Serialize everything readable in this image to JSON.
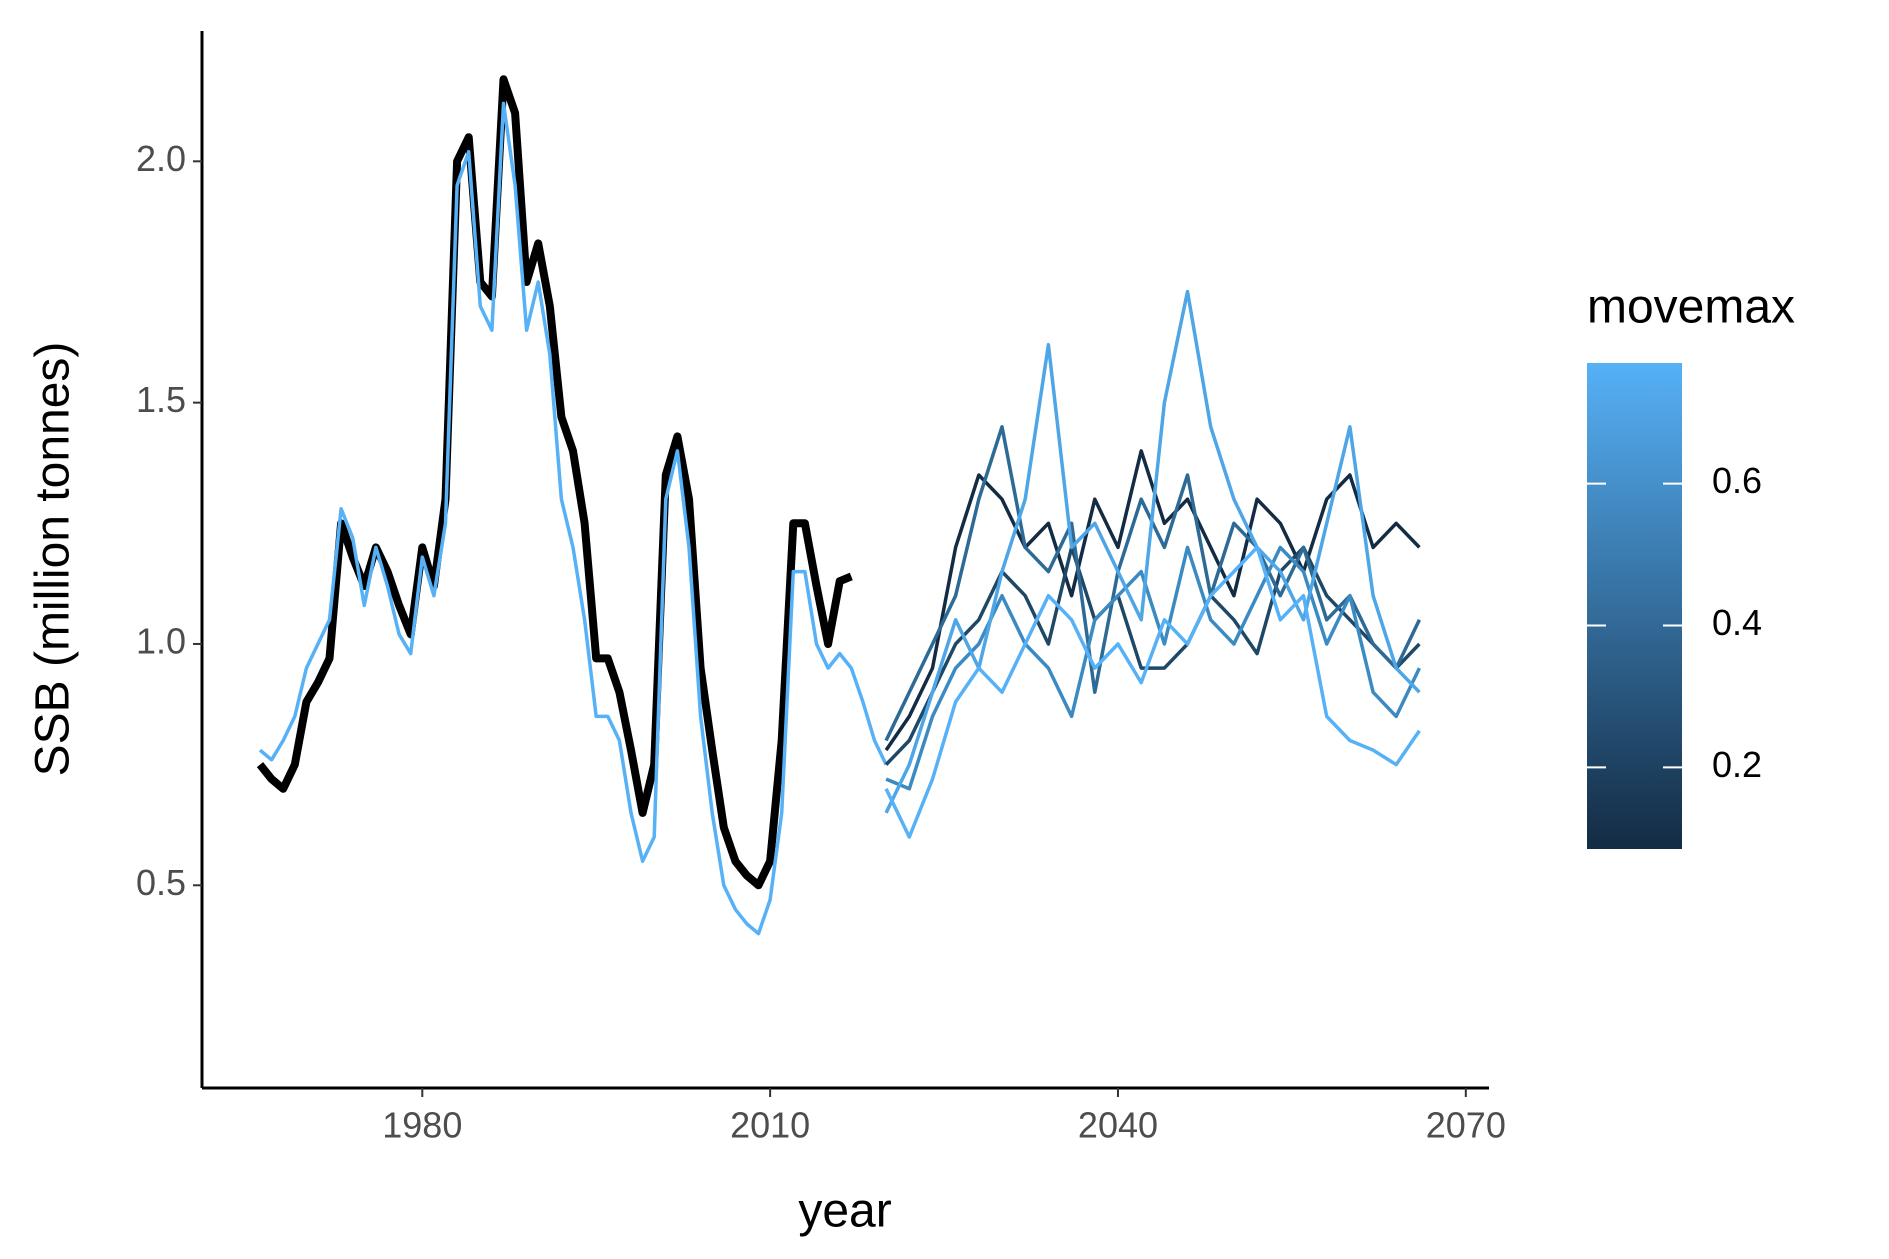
{
  "chart_data": {
    "type": "line",
    "xlabel": "year",
    "ylabel": "SSB (million  tonnes)",
    "xlim": [
      1961,
      2072
    ],
    "xticks": [
      1980,
      2010,
      2040,
      2070
    ],
    "ylim": [
      0.08,
      2.27
    ],
    "yticks": [
      {
        "value": 0.5,
        "label": "0.5"
      },
      {
        "value": 1.0,
        "label": "1.0"
      },
      {
        "value": 1.5,
        "label": "1.5"
      },
      {
        "value": 2.0,
        "label": "2.0"
      }
    ],
    "colorbar": {
      "title": "movemax",
      "lim": [
        0.085,
        0.77
      ],
      "ticks": [
        0.2,
        0.4,
        0.6
      ],
      "low_color": "#132b43",
      "high_color": "#56b1f7"
    },
    "series": [
      {
        "color": "#000000",
        "width": "thick",
        "x": [
          1966,
          1967,
          1968,
          1969,
          1970,
          1971,
          1972,
          1973,
          1974,
          1975,
          1976,
          1977,
          1978,
          1979,
          1980,
          1981,
          1982,
          1983,
          1984,
          1985,
          1986,
          1987,
          1988,
          1989,
          1990,
          1991,
          1992,
          1993,
          1994,
          1995,
          1996,
          1997,
          1998,
          1999,
          2000,
          2001,
          2002,
          2003,
          2004,
          2005,
          2006,
          2007,
          2008,
          2009,
          2010,
          2011,
          2012,
          2013,
          2014,
          2015,
          2016,
          2017
        ],
        "values": [
          0.75,
          0.72,
          0.7,
          0.75,
          0.88,
          0.92,
          0.97,
          1.25,
          1.18,
          1.12,
          1.2,
          1.15,
          1.08,
          1.02,
          1.2,
          1.12,
          1.3,
          2.0,
          2.05,
          1.75,
          1.72,
          2.17,
          2.1,
          1.75,
          1.83,
          1.7,
          1.47,
          1.4,
          1.25,
          0.97,
          0.97,
          0.9,
          0.78,
          0.65,
          0.75,
          1.35,
          1.43,
          1.3,
          0.95,
          0.78,
          0.62,
          0.55,
          0.52,
          0.5,
          0.55,
          0.8,
          1.25,
          1.25,
          1.12,
          1.0,
          1.13,
          1.14
        ]
      },
      {
        "color": "#56b1f7",
        "movemax": 0.77,
        "x": [
          1966,
          1967,
          1968,
          1969,
          1970,
          1971,
          1972,
          1973,
          1974,
          1975,
          1976,
          1977,
          1978,
          1979,
          1980,
          1981,
          1982,
          1983,
          1984,
          1985,
          1986,
          1987,
          1988,
          1989,
          1990,
          1991,
          1992,
          1993,
          1994,
          1995,
          1996,
          1997,
          1998,
          1999,
          2000,
          2001,
          2002,
          2003,
          2004,
          2005,
          2006,
          2007,
          2008,
          2009,
          2010,
          2011,
          2012,
          2013,
          2014,
          2015,
          2016,
          2017,
          2018,
          2019,
          2020
        ],
        "values": [
          0.78,
          0.76,
          0.8,
          0.85,
          0.95,
          1.0,
          1.05,
          1.28,
          1.22,
          1.08,
          1.2,
          1.12,
          1.02,
          0.98,
          1.18,
          1.1,
          1.25,
          1.95,
          2.02,
          1.7,
          1.65,
          2.12,
          1.95,
          1.65,
          1.75,
          1.6,
          1.3,
          1.2,
          1.05,
          0.85,
          0.85,
          0.8,
          0.65,
          0.55,
          0.6,
          1.3,
          1.4,
          1.2,
          0.85,
          0.65,
          0.5,
          0.45,
          0.42,
          0.4,
          0.47,
          0.65,
          1.15,
          1.15,
          1.0,
          0.95,
          0.98,
          0.95,
          0.88,
          0.8,
          0.75
        ]
      },
      {
        "color": "#132b43",
        "movemax": 0.1,
        "x": [
          2020,
          2022,
          2024,
          2026,
          2028,
          2030,
          2032,
          2034,
          2036,
          2038,
          2040,
          2042,
          2044,
          2046,
          2048,
          2050,
          2052,
          2054,
          2056,
          2058,
          2060,
          2062,
          2064,
          2066
        ],
        "values": [
          0.78,
          0.85,
          0.95,
          1.2,
          1.35,
          1.3,
          1.2,
          1.25,
          1.1,
          1.3,
          1.2,
          1.4,
          1.25,
          1.3,
          1.2,
          1.1,
          1.3,
          1.25,
          1.15,
          1.3,
          1.35,
          1.2,
          1.25,
          1.2
        ]
      },
      {
        "color": "#1f4866",
        "movemax": 0.25,
        "x": [
          2020,
          2022,
          2024,
          2026,
          2028,
          2030,
          2032,
          2034,
          2036,
          2038,
          2040,
          2042,
          2044,
          2046,
          2048,
          2050,
          2052,
          2054,
          2056,
          2058,
          2060,
          2062,
          2064,
          2066
        ],
        "values": [
          0.75,
          0.8,
          0.9,
          1.0,
          1.05,
          1.15,
          1.1,
          1.0,
          1.2,
          1.05,
          1.1,
          0.95,
          0.95,
          1.0,
          1.1,
          1.05,
          0.98,
          1.15,
          1.2,
          1.1,
          1.05,
          1.0,
          0.95,
          1.0
        ]
      },
      {
        "color": "#2d6a96",
        "movemax": 0.4,
        "x": [
          2020,
          2022,
          2024,
          2026,
          2028,
          2030,
          2032,
          2034,
          2036,
          2038,
          2040,
          2042,
          2044,
          2046,
          2048,
          2050,
          2052,
          2054,
          2056,
          2058,
          2060,
          2062,
          2064,
          2066
        ],
        "values": [
          0.8,
          0.9,
          1.0,
          1.1,
          1.3,
          1.45,
          1.2,
          1.15,
          1.25,
          0.9,
          1.15,
          1.3,
          1.2,
          1.35,
          1.1,
          1.25,
          1.2,
          1.1,
          1.2,
          1.05,
          1.1,
          1.0,
          0.95,
          1.05
        ]
      },
      {
        "color": "#3b8bc2",
        "movemax": 0.55,
        "x": [
          2020,
          2022,
          2024,
          2026,
          2028,
          2030,
          2032,
          2034,
          2036,
          2038,
          2040,
          2042,
          2044,
          2046,
          2048,
          2050,
          2052,
          2054,
          2056,
          2058,
          2060,
          2062,
          2064,
          2066
        ],
        "values": [
          0.72,
          0.7,
          0.85,
          0.95,
          1.0,
          1.1,
          1.0,
          0.95,
          0.85,
          1.05,
          1.1,
          1.15,
          1.0,
          1.2,
          1.05,
          1.0,
          1.1,
          1.2,
          1.15,
          1.0,
          1.1,
          0.9,
          0.85,
          0.95
        ]
      },
      {
        "color": "#4ea6e6",
        "movemax": 0.7,
        "x": [
          2020,
          2022,
          2024,
          2026,
          2028,
          2030,
          2032,
          2034,
          2036,
          2038,
          2040,
          2042,
          2044,
          2046,
          2048,
          2050,
          2052,
          2054,
          2056,
          2058,
          2060,
          2062,
          2064,
          2066
        ],
        "values": [
          0.65,
          0.75,
          0.9,
          1.05,
          0.95,
          1.15,
          1.3,
          1.62,
          1.2,
          1.25,
          1.15,
          1.05,
          1.5,
          1.73,
          1.45,
          1.3,
          1.2,
          1.15,
          1.05,
          1.25,
          1.45,
          1.1,
          0.95,
          0.9
        ]
      },
      {
        "color": "#56b1f7",
        "movemax": 0.77,
        "x": [
          2020,
          2022,
          2024,
          2026,
          2028,
          2030,
          2032,
          2034,
          2036,
          2038,
          2040,
          2042,
          2044,
          2046,
          2048,
          2050,
          2052,
          2054,
          2056,
          2058,
          2060,
          2062,
          2064,
          2066
        ],
        "values": [
          0.7,
          0.6,
          0.72,
          0.88,
          0.95,
          0.9,
          1.0,
          1.1,
          1.05,
          0.95,
          1.0,
          0.92,
          1.05,
          1.0,
          1.1,
          1.15,
          1.2,
          1.05,
          1.1,
          0.85,
          0.8,
          0.78,
          0.75,
          0.82
        ]
      }
    ]
  }
}
